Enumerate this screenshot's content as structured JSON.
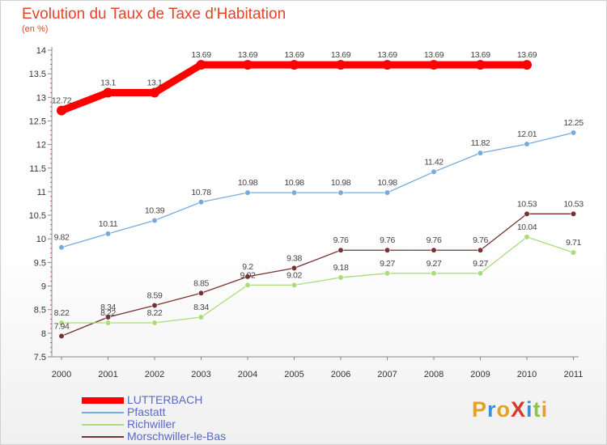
{
  "title": "Evolution du Taux de Taxe d'Habitation",
  "unit_label": "(en %)",
  "logo": {
    "text": "ProXiti",
    "letters": [
      {
        "ch": "P",
        "color": "#e8a020"
      },
      {
        "ch": "r",
        "color": "#3a8fd8"
      },
      {
        "ch": "o",
        "color": "#e8a020"
      },
      {
        "ch": "X",
        "color": "#d83a2a"
      },
      {
        "ch": "i",
        "color": "#3a8fd8"
      },
      {
        "ch": "t",
        "color": "#8cc63f"
      },
      {
        "ch": "i",
        "color": "#e8a020"
      }
    ]
  },
  "chart_data": {
    "type": "line",
    "title": "Evolution du Taux de Taxe d'Habitation",
    "ylabel": "(en %)",
    "x": [
      "2000",
      "2001",
      "2002",
      "2003",
      "2004",
      "2005",
      "2006",
      "2007",
      "2008",
      "2009",
      "2010",
      "2011"
    ],
    "ylim": [
      7.5,
      14
    ],
    "y_ticks": [
      "7.5",
      "8",
      "8.5",
      "9",
      "9.5",
      "10",
      "10.5",
      "11",
      "11.5",
      "12",
      "12.5",
      "13",
      "13.5",
      "14"
    ],
    "grid": false,
    "legend_position": "bottom-left",
    "series": [
      {
        "name": "LUTTERBACH",
        "color": "#ff0000",
        "values": [
          12.72,
          13.1,
          13.1,
          13.69,
          13.69,
          13.69,
          13.69,
          13.69,
          13.69,
          13.69,
          13.69,
          null
        ],
        "labels": [
          "12.72",
          "13.1",
          "13.1",
          "13.69",
          "13.69",
          "13.69",
          "13.69",
          "13.69",
          "13.69",
          "13.69",
          "13.69",
          ""
        ]
      },
      {
        "name": "Pfastatt",
        "color": "#77aadd",
        "values": [
          9.82,
          10.11,
          10.39,
          10.78,
          10.98,
          10.98,
          10.98,
          10.98,
          11.42,
          11.82,
          12.01,
          12.25
        ],
        "labels": [
          "9.82",
          "10.11",
          "10.39",
          "10.78",
          "10.98",
          "10.98",
          "10.98",
          "10.98",
          "11.42",
          "11.82",
          "12.01",
          "12.25"
        ]
      },
      {
        "name": "Richwiller",
        "color": "#aadd77",
        "values": [
          8.22,
          8.22,
          8.22,
          8.34,
          9.02,
          9.02,
          9.18,
          9.27,
          9.27,
          9.27,
          10.04,
          9.71
        ],
        "labels": [
          "8.22",
          "8.22",
          "8.22",
          "8.34",
          "9.02",
          "9.02",
          "9.18",
          "9.27",
          "9.27",
          "9.27",
          "10.04",
          "9.71"
        ]
      },
      {
        "name": "Morschwiller-le-Bas",
        "color": "#773333",
        "values": [
          7.94,
          8.34,
          8.59,
          8.85,
          9.2,
          9.38,
          9.76,
          9.76,
          9.76,
          9.76,
          10.53,
          10.53
        ],
        "labels": [
          "7.94",
          "8.34",
          "8.59",
          "8.85",
          "9.2",
          "9.38",
          "9.76",
          "9.76",
          "9.76",
          "9.76",
          "10.53",
          "10.53"
        ]
      }
    ]
  }
}
